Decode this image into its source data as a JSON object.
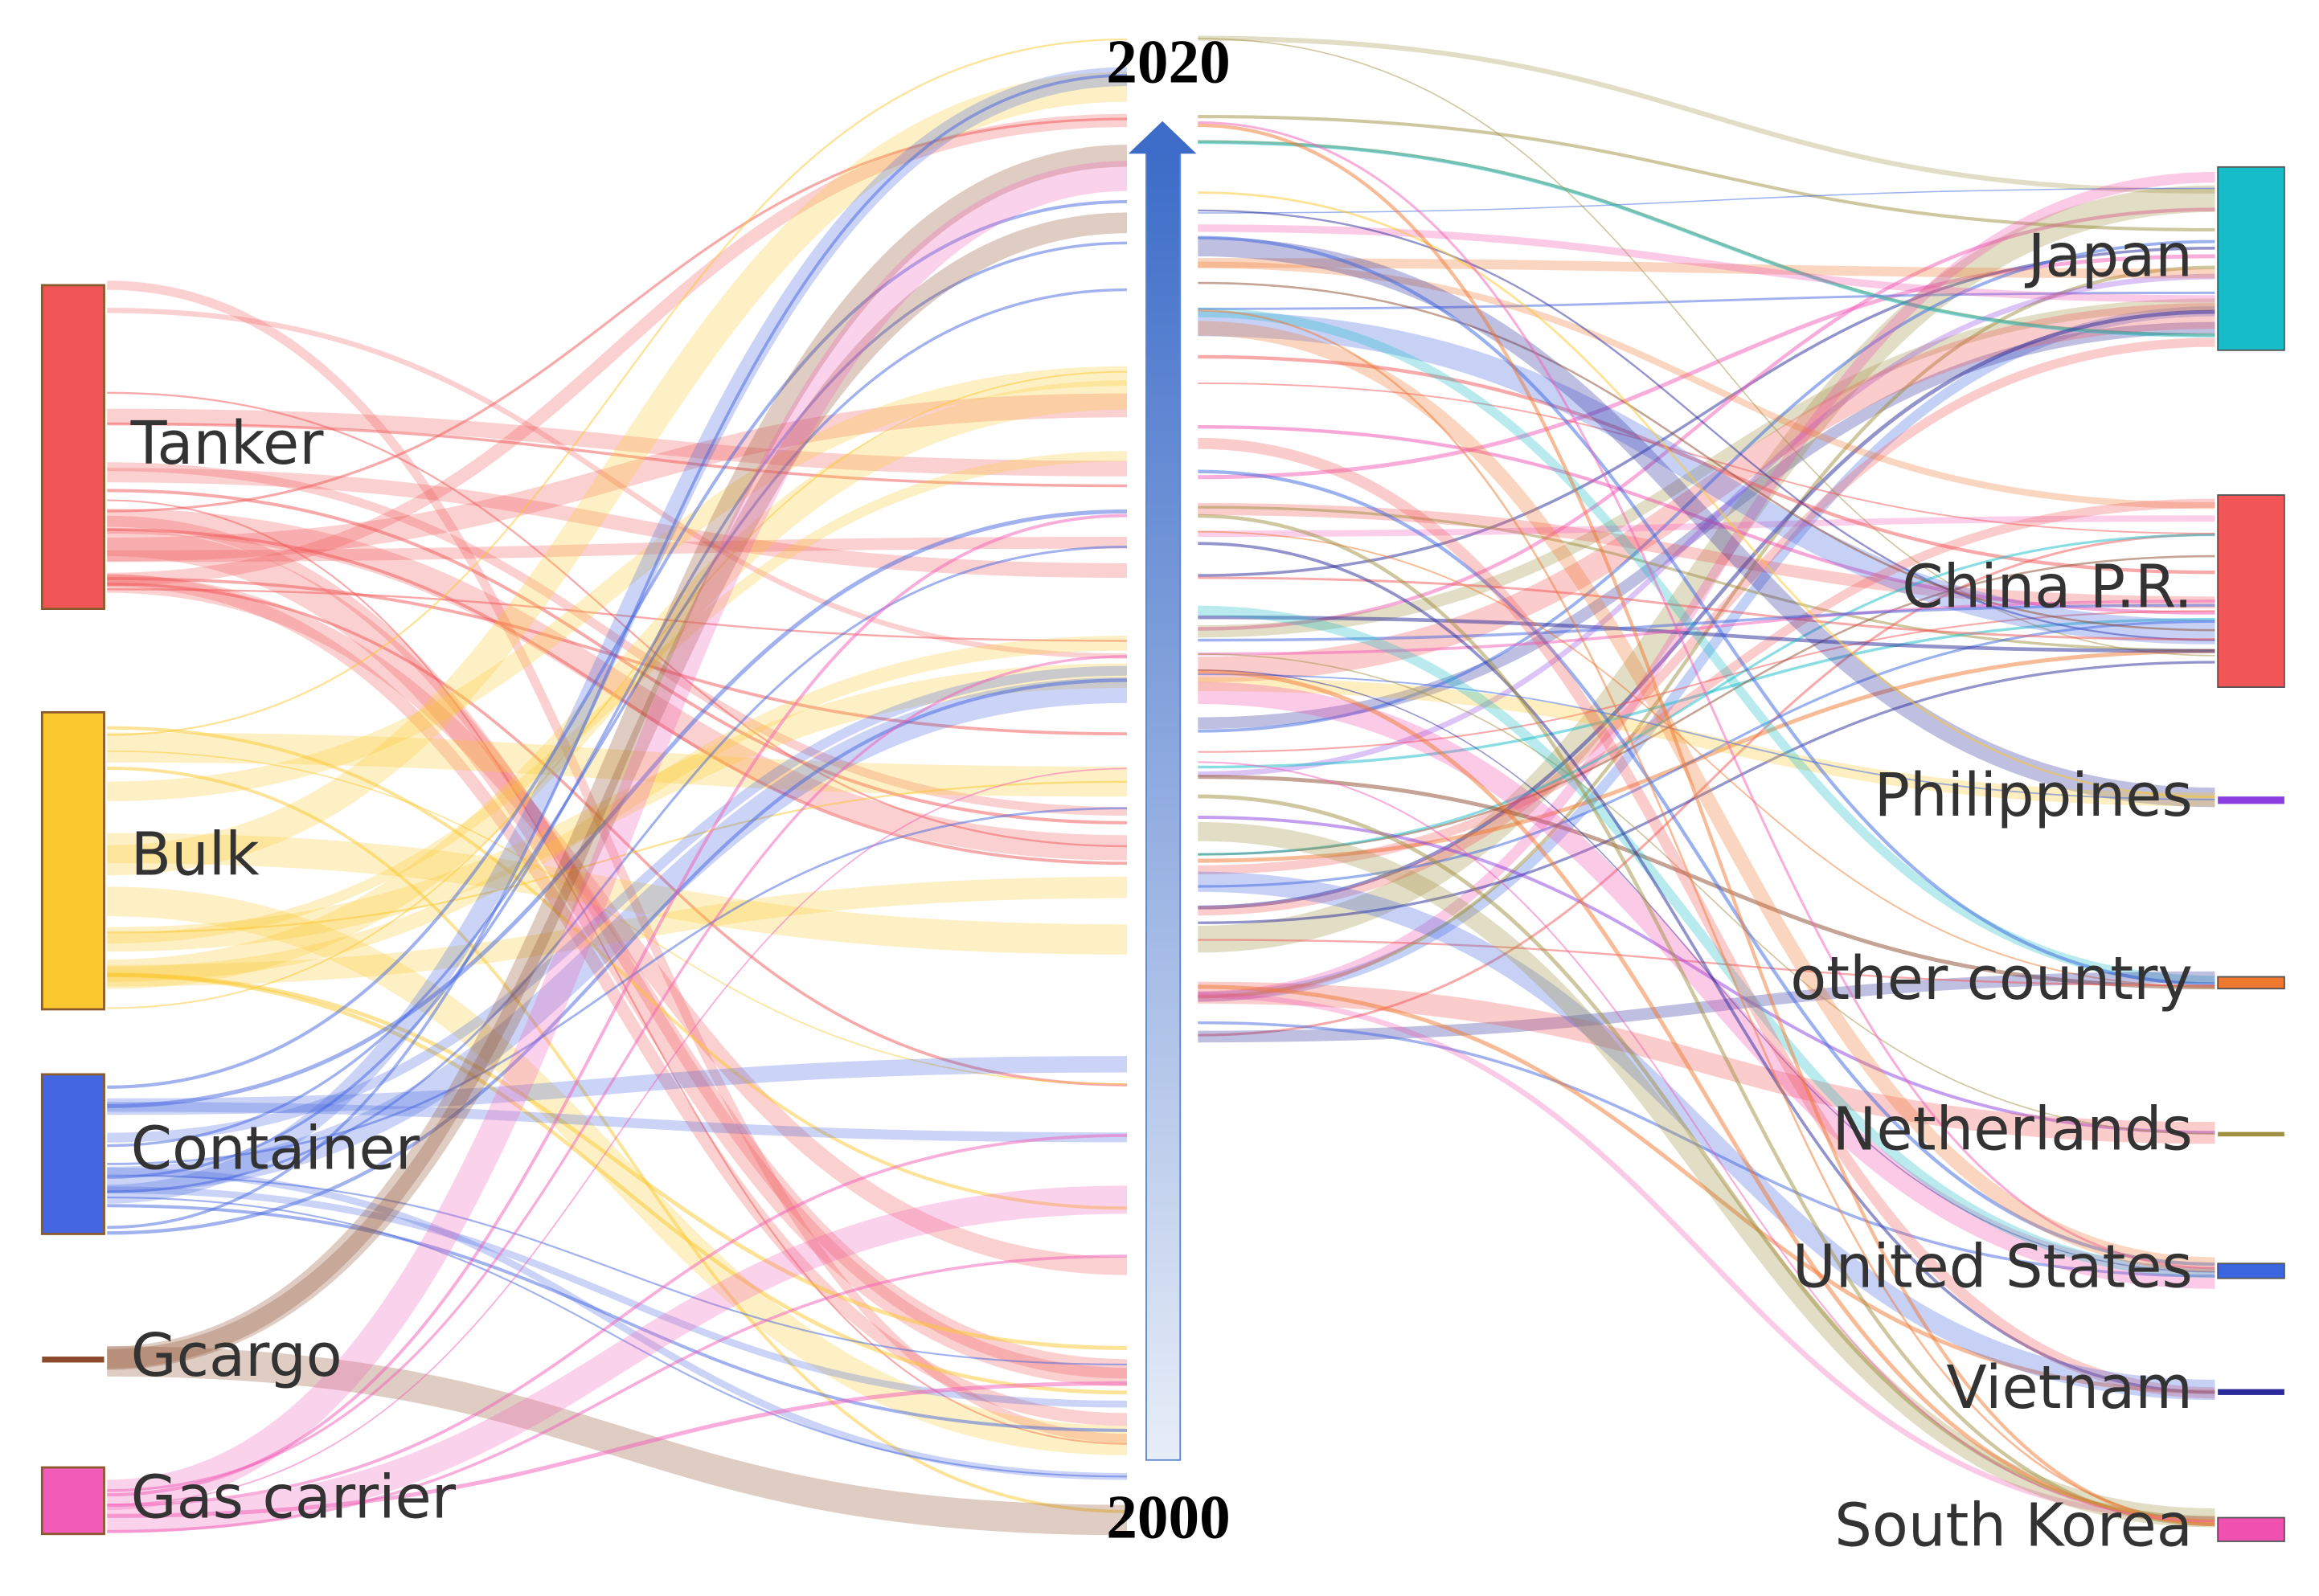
{
  "year_top": "2020",
  "year_bottom": "2000",
  "sources": [
    {
      "label": "Tanker",
      "color": "#f25555"
    },
    {
      "label": "Bulk",
      "color": "#fcc830"
    },
    {
      "label": "Container",
      "color": "#4466e0"
    },
    {
      "label": "Gcargo",
      "color": "#8b4a2b"
    },
    {
      "label": "Gas carrier",
      "color": "#f25cb8"
    }
  ],
  "destinations": [
    {
      "label": "Japan",
      "color": "#16bcc8"
    },
    {
      "label": "China P.R.",
      "color": "#f25555"
    },
    {
      "label": "Philippines",
      "color": "#8a3ee0"
    },
    {
      "label": "other country",
      "color": "#f07830"
    },
    {
      "label": "Netherlands",
      "color": "#a09040"
    },
    {
      "label": "United States",
      "color": "#3a66e0"
    },
    {
      "label": "Vietnam",
      "color": "#2a2a9a"
    },
    {
      "label": "South Korea",
      "color": "#f050b0"
    }
  ]
}
